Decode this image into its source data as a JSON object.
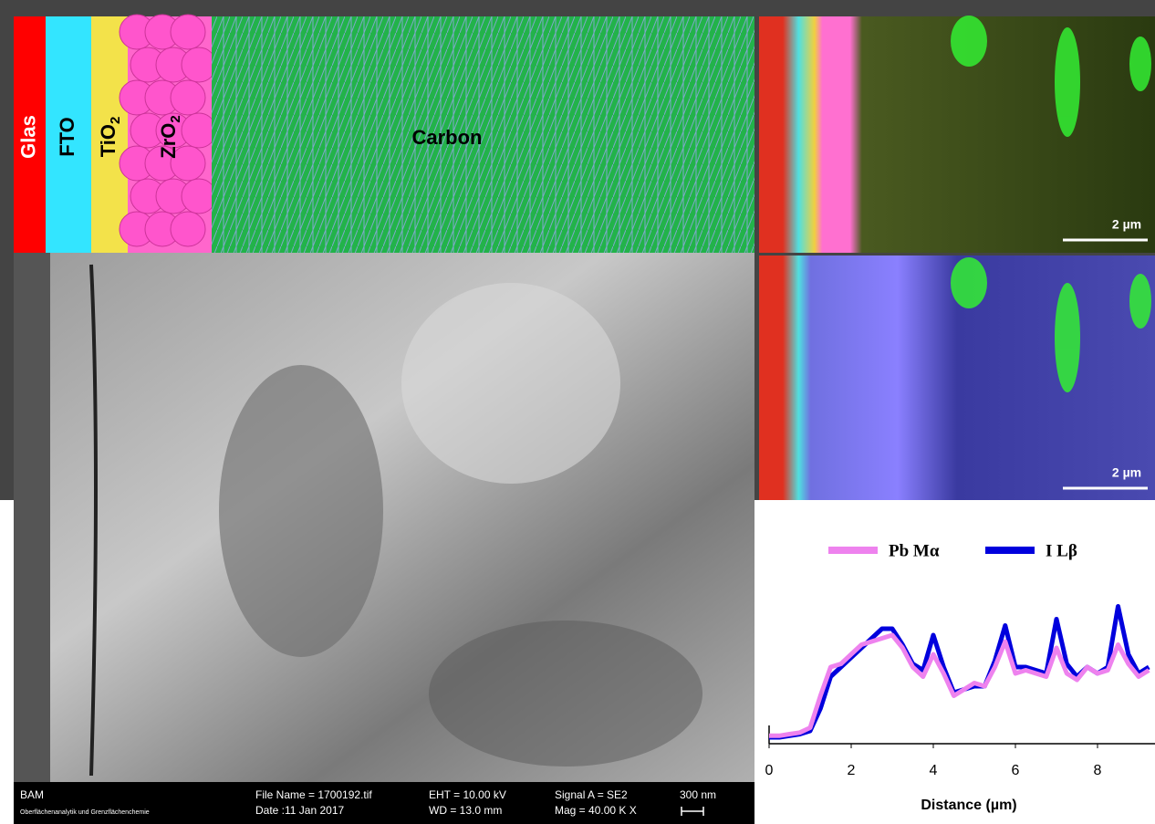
{
  "schematic": {
    "layers": [
      {
        "label": "Glas",
        "color": "#ff0000"
      },
      {
        "label": "FTO",
        "color": "#33e5ff"
      },
      {
        "label": "TiO",
        "sub": "2",
        "color": "#f3e24a"
      },
      {
        "label": "ZrO",
        "sub": "2",
        "color": "#ff66cc"
      },
      {
        "label": "Carbon",
        "color": "#22b34a"
      }
    ]
  },
  "sem_info": {
    "lab": "BAM",
    "department": "Oberflächenanalytik und Grenzflächenchemie",
    "file_name": "File Name = 1700192.tif",
    "date": "Date :11 Jan 2017",
    "eht": "EHT = 10.00 kV",
    "wd": "WD = 13.0 mm",
    "signal": "Signal A = SE2",
    "mag": "Mag =  40.00 K X",
    "scale": "300 nm"
  },
  "edx_maps": [
    {
      "scale_bar": "2 µm"
    },
    {
      "scale_bar": "2 µm"
    }
  ],
  "chart_data": {
    "type": "line",
    "xlabel": "Distance (µm)",
    "x": [
      0,
      0.25,
      0.5,
      0.75,
      1,
      1.25,
      1.5,
      1.75,
      2,
      2.25,
      2.5,
      2.75,
      3,
      3.25,
      3.5,
      3.75,
      4,
      4.25,
      4.5,
      4.75,
      5,
      5.25,
      5.5,
      5.75,
      6,
      6.25,
      6.5,
      6.75,
      7,
      7.25,
      7.5,
      7.75,
      8,
      8.25,
      8.5,
      8.75,
      9,
      9.25
    ],
    "series": [
      {
        "name": "I Lβ",
        "color": "#0000dd",
        "values": [
          4,
          4,
          5,
          6,
          8,
          22,
          42,
          48,
          54,
          60,
          66,
          72,
          72,
          62,
          50,
          46,
          68,
          48,
          32,
          34,
          36,
          36,
          52,
          74,
          48,
          48,
          46,
          44,
          78,
          50,
          42,
          48,
          44,
          48,
          86,
          56,
          44,
          48
        ]
      },
      {
        "name": "Pb Mα",
        "color": "#ee82ee",
        "values": [
          5,
          5,
          6,
          7,
          10,
          30,
          48,
          50,
          56,
          62,
          64,
          66,
          68,
          60,
          48,
          42,
          56,
          44,
          30,
          34,
          38,
          36,
          48,
          64,
          44,
          46,
          44,
          42,
          60,
          44,
          40,
          48,
          44,
          46,
          62,
          50,
          42,
          46
        ]
      }
    ],
    "xlim": [
      0,
      9.4
    ],
    "ylim": [
      0,
      100
    ],
    "xticks": [
      0,
      2,
      4,
      6,
      8
    ]
  }
}
